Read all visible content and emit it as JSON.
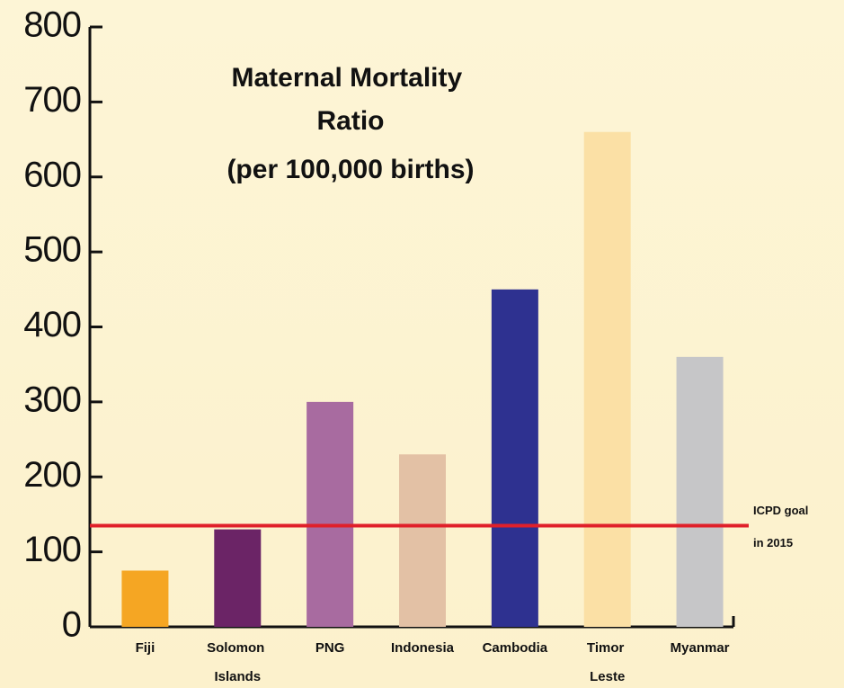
{
  "chart_data": {
    "type": "bar",
    "title": "Maternal Mortality Ratio",
    "subtitle": "(per 100,000 births)",
    "categories": [
      "Fiji",
      "Solomon Islands",
      "PNG",
      "Indonesia",
      "Cambodia",
      "Timor Leste",
      "Myanmar"
    ],
    "values": [
      75,
      130,
      300,
      230,
      450,
      660,
      360
    ],
    "colors": [
      "#f5a623",
      "#6b2466",
      "#a86ba0",
      "#e3c1a5",
      "#2e3190",
      "#fbe0a5",
      "#c6c6c8"
    ],
    "ylim": [
      0,
      800
    ],
    "yticks": [
      0,
      100,
      200,
      300,
      400,
      500,
      600,
      700,
      800
    ],
    "reference_line": {
      "value": 135,
      "color": "#e0202a",
      "label": [
        "ICPD goal",
        "in 2015"
      ]
    }
  }
}
